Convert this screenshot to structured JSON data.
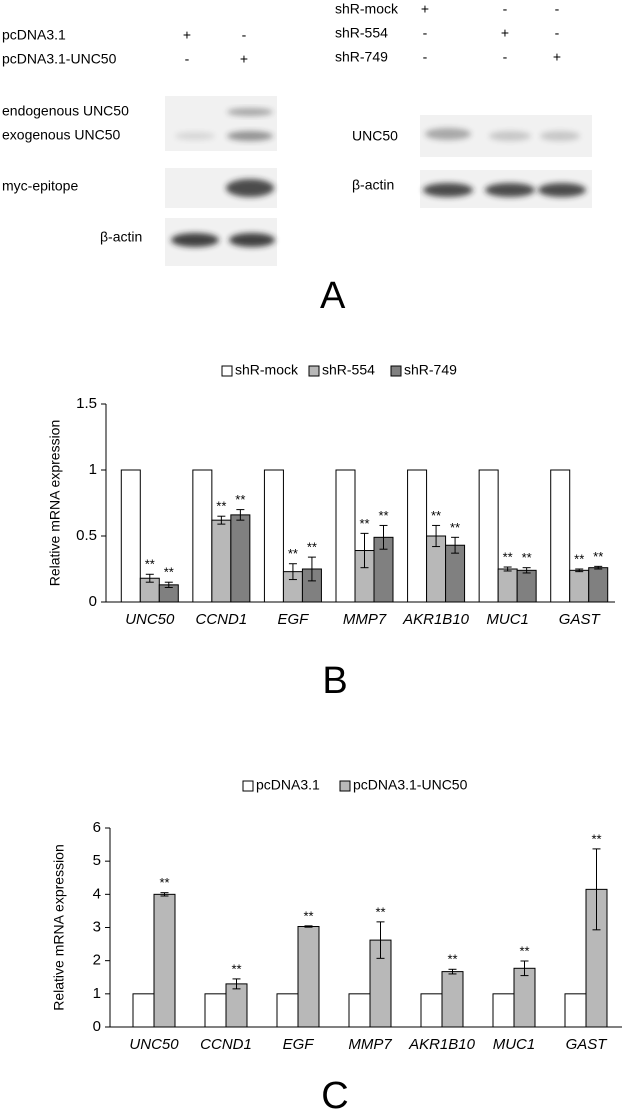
{
  "panel_a": {
    "label": "A",
    "left": {
      "conditions": [
        {
          "name": "pcDNA3.1",
          "lanes": [
            "+",
            "-"
          ]
        },
        {
          "name": "pcDNA3.1-UNC50",
          "lanes": [
            "-",
            "+"
          ]
        }
      ],
      "rows": [
        "endogenous UNC50",
        "exogenous UNC50",
        "myc-epitope",
        "β-actin"
      ]
    },
    "right": {
      "conditions": [
        {
          "name": "shR-mock",
          "lanes": [
            "+",
            "-",
            "-"
          ]
        },
        {
          "name": "shR-554",
          "lanes": [
            "-",
            "+",
            "-"
          ]
        },
        {
          "name": "shR-749",
          "lanes": [
            "-",
            "-",
            "+"
          ]
        }
      ],
      "rows": [
        "UNC50",
        "β-actin"
      ]
    }
  },
  "chart_data": [
    {
      "type": "bar",
      "panel_label": "B",
      "y_label": "Relative mRNA expression",
      "categories": [
        "UNC50",
        "CCND1",
        "EGF",
        "MMP7",
        "AKR1B10",
        "MUC1",
        "GAST"
      ],
      "series": [
        {
          "name": "shR-mock",
          "color": "#ffffff",
          "values": [
            1,
            1,
            1,
            1,
            1,
            1,
            1
          ]
        },
        {
          "name": "shR-554",
          "color": "#b8b8b8",
          "values": [
            0.18,
            0.62,
            0.23,
            0.39,
            0.5,
            0.25,
            0.24
          ],
          "errors": [
            0.03,
            0.03,
            0.06,
            0.13,
            0.08,
            0.015,
            0.01
          ],
          "significance": [
            "**",
            "**",
            "**",
            "**",
            "**",
            "**",
            "**"
          ]
        },
        {
          "name": "shR-749",
          "color": "#808080",
          "values": [
            0.13,
            0.66,
            0.25,
            0.49,
            0.43,
            0.24,
            0.26
          ],
          "errors": [
            0.02,
            0.04,
            0.09,
            0.09,
            0.06,
            0.02,
            0.01
          ],
          "significance": [
            "**",
            "**",
            "**",
            "**",
            "**",
            "**",
            "**"
          ]
        }
      ],
      "ylim": [
        0,
        1.5
      ],
      "yticks": [
        0,
        0.5,
        1,
        1.5
      ]
    },
    {
      "type": "bar",
      "panel_label": "C",
      "y_label": "Relative mRNA expression",
      "categories": [
        "UNC50",
        "CCND1",
        "EGF",
        "MMP7",
        "AKR1B10",
        "MUC1",
        "GAST"
      ],
      "series": [
        {
          "name": "pcDNA3.1",
          "color": "#ffffff",
          "values": [
            1,
            1,
            1,
            1,
            1,
            1,
            1
          ]
        },
        {
          "name": "pcDNA3.1-UNC50",
          "color": "#b8b8b8",
          "values": [
            4.0,
            1.3,
            3.03,
            2.62,
            1.67,
            1.77,
            4.15
          ],
          "errors": [
            0.05,
            0.15,
            0.02,
            0.55,
            0.07,
            0.22,
            1.22
          ],
          "significance": [
            "**",
            "**",
            "**",
            "**",
            "**",
            "**",
            "**"
          ]
        }
      ],
      "ylim": [
        0,
        6
      ],
      "yticks": [
        0,
        1,
        2,
        3,
        4,
        5,
        6
      ]
    }
  ]
}
